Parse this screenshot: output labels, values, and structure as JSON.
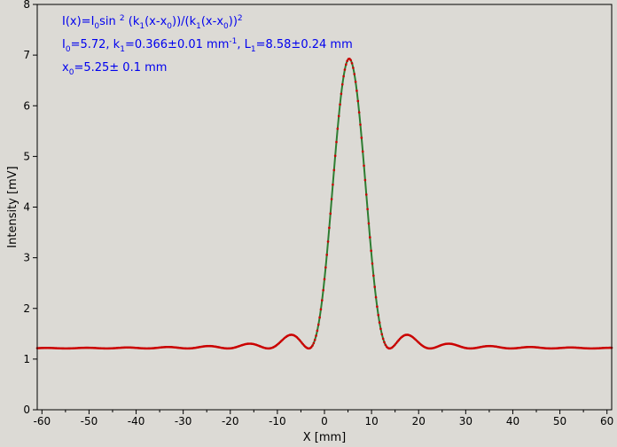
{
  "chart_data": {
    "type": "scatter",
    "title": "",
    "xlabel": "X [mm]",
    "ylabel": "Intensity [mV]",
    "xlim": [
      -61,
      61
    ],
    "ylim": [
      0,
      8
    ],
    "x_ticks": [
      "-60",
      "-50",
      "-40",
      "-30",
      "-20",
      "-10",
      "0",
      "10",
      "20",
      "30",
      "40",
      "50",
      "60"
    ],
    "y_ticks": [
      "0",
      "1",
      "2",
      "3",
      "4",
      "5",
      "6",
      "7",
      "8"
    ],
    "grid": false,
    "series": [
      {
        "name": "",
        "color": "#cc0000",
        "fit_color": "#2e7d32",
        "model": {
          "I0": 5.72,
          "k1": 0.366,
          "x0": 5.25,
          "offset": 1.21
        },
        "x_range": [
          -61,
          61
        ],
        "n_points": 480
      }
    ],
    "annotation_color": "#0000ee",
    "annotations": {
      "line1": [
        {
          "t": "I(x)=I"
        },
        {
          "t": "0",
          "sub": true
        },
        {
          "t": "sin "
        },
        {
          "t": "2",
          "sup": true
        },
        {
          "t": " (k"
        },
        {
          "t": "1",
          "sub": true
        },
        {
          "t": "(x-x"
        },
        {
          "t": "0",
          "sub": true
        },
        {
          "t": "))/(k"
        },
        {
          "t": "1",
          "sub": true
        },
        {
          "t": "(x-x"
        },
        {
          "t": "0",
          "sub": true
        },
        {
          "t": "))"
        },
        {
          "t": "2",
          "sup": true
        }
      ],
      "line2": [
        {
          "t": "I"
        },
        {
          "t": "0",
          "sub": true
        },
        {
          "t": "=5.72,  k"
        },
        {
          "t": "1",
          "sub": true
        },
        {
          "t": "=0.366±0.01 mm"
        },
        {
          "t": "-1",
          "sup": true
        },
        {
          "t": ",   L"
        },
        {
          "t": "1",
          "sub": true
        },
        {
          "t": "=8.58±0.24 mm"
        }
      ],
      "line3": [
        {
          "t": "x"
        },
        {
          "t": "0",
          "sub": true
        },
        {
          "t": "=5.25±   0.1 mm"
        }
      ]
    }
  }
}
